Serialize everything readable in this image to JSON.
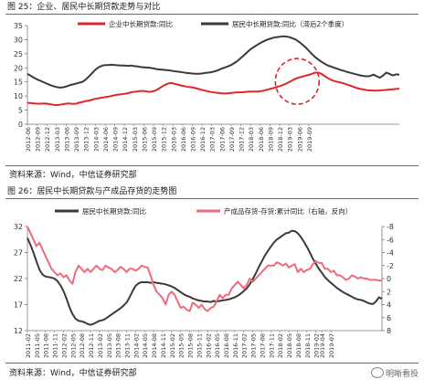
{
  "figure1": {
    "caption": "图 25：企业、居民中长期贷款走势与对比",
    "source": "资料来源：Wind，中信证券研究部"
  },
  "figure2": {
    "caption": "图 26：居民中长期贷款与产成品存货的走势图",
    "source": "资料来源：Wind，中信证券研究部"
  },
  "watermark": {
    "text": "明晰看投"
  },
  "colors": {
    "red": "#e0262d",
    "dark": "#3a3a3a",
    "pink": "#ee6b7c",
    "grid": "#bdbdbd",
    "axis": "#7a7a7a"
  },
  "chart_data": [
    {
      "type": "line",
      "title": "",
      "legend_position": "top",
      "grid": false,
      "ylim": [
        0,
        35
      ],
      "yticks": [
        0,
        5,
        10,
        15,
        20,
        25,
        30,
        35
      ],
      "xticks": [
        "2012-06",
        "2012-09",
        "2012-12",
        "2013-03",
        "2013-06",
        "2013-09",
        "2013-12",
        "2014-03",
        "2014-06",
        "2014-09",
        "2014-12",
        "2015-03",
        "2015-06",
        "2015-09",
        "2015-12",
        "2016-03",
        "2016-06",
        "2016-09",
        "2016-12",
        "2017-03",
        "2017-06",
        "2017-09",
        "2017-12",
        "2018-03",
        "2018-06",
        "2018-09",
        "2018-12",
        "2019-03",
        "2019-06",
        "2019-09"
      ],
      "x_start": "2012-06",
      "annotation": "red dashed ellipse highlighting 2019-03 to 2019-09",
      "series": [
        {
          "name": "企业中长期贷款:同比",
          "color": "#e0262d",
          "values": [
            7.6,
            7.5,
            7.4,
            7.3,
            7.3,
            7.4,
            7.3,
            7.1,
            6.9,
            6.8,
            6.9,
            7.1,
            7.3,
            7.4,
            7.2,
            7.3,
            7.6,
            7.9,
            8.2,
            8.4,
            8.7,
            9.0,
            9.2,
            9.4,
            9.6,
            9.8,
            10.0,
            10.3,
            10.5,
            10.6,
            10.8,
            11.0,
            11.3,
            11.5,
            11.6,
            11.8,
            11.8,
            11.6,
            11.5,
            11.7,
            12.2,
            12.9,
            13.6,
            14.2,
            14.6,
            14.5,
            14.2,
            13.9,
            13.6,
            13.4,
            13.2,
            13.1,
            12.8,
            12.5,
            12.2,
            11.9,
            11.6,
            11.4,
            11.2,
            11.1,
            11.0,
            10.9,
            11.0,
            11.1,
            11.2,
            11.3,
            11.3,
            11.4,
            11.5,
            11.6,
            11.6,
            11.6,
            11.7,
            11.9,
            12.2,
            12.5,
            12.8,
            13.2,
            13.5,
            13.9,
            14.4,
            15.0,
            15.6,
            16.2,
            16.6,
            16.9,
            17.2,
            17.5,
            17.9,
            18.3,
            18.3,
            17.8,
            17.0,
            16.3,
            15.7,
            15.3,
            15.0,
            14.7,
            14.4,
            14.0,
            13.6,
            13.2,
            12.8,
            12.5,
            12.3,
            12.1,
            12.0,
            11.9,
            11.9,
            12.0,
            12.1,
            12.2,
            12.3,
            12.4,
            12.5,
            12.6
          ]
        },
        {
          "name": "居民中长期贷款:同比（滞后2个季度）",
          "color": "#3a3a3a",
          "values": [
            17.9,
            17.2,
            16.5,
            15.9,
            15.4,
            14.9,
            14.4,
            13.9,
            13.5,
            13.2,
            13.0,
            13.1,
            13.4,
            13.8,
            14.1,
            14.4,
            14.7,
            15.0,
            15.8,
            16.9,
            18.1,
            19.3,
            20.2,
            20.7,
            21.0,
            21.0,
            21.1,
            21.0,
            20.9,
            20.8,
            20.8,
            20.7,
            20.8,
            20.6,
            20.5,
            20.3,
            20.2,
            20.1,
            20.0,
            19.8,
            19.5,
            19.4,
            19.3,
            19.2,
            19.1,
            18.9,
            18.7,
            18.6,
            18.4,
            18.2,
            18.1,
            18.0,
            17.9,
            17.9,
            18.0,
            18.2,
            18.3,
            18.5,
            18.8,
            19.2,
            19.7,
            20.1,
            20.5,
            21.0,
            21.7,
            22.5,
            23.5,
            24.5,
            25.6,
            26.6,
            27.4,
            28.1,
            28.8,
            29.4,
            29.9,
            30.3,
            30.7,
            30.9,
            31.0,
            31.2,
            31.1,
            30.9,
            30.5,
            30.0,
            29.2,
            28.3,
            27.3,
            26.1,
            24.9,
            23.8,
            22.9,
            22.1,
            21.4,
            20.8,
            20.4,
            20.0,
            19.6,
            19.2,
            18.9,
            18.5,
            18.2,
            17.9,
            17.6,
            17.3,
            17.1,
            17.0,
            17.1,
            17.6,
            17.0,
            16.5,
            17.3,
            18.3,
            17.8,
            17.3,
            17.7,
            17.6
          ]
        }
      ]
    },
    {
      "type": "line",
      "title": "",
      "legend_position": "top",
      "grid": false,
      "ylim": [
        12,
        32
      ],
      "yticks": [
        12,
        17,
        22,
        27,
        32
      ],
      "y2lim": [
        8,
        -8
      ],
      "y2ticks": [
        8,
        6,
        4,
        2,
        0,
        -2,
        -4,
        -6,
        -8
      ],
      "y2_reversed": true,
      "xticks": [
        "2011-02",
        "2011-05",
        "2011-08",
        "2011-11",
        "2012-02",
        "2012-05",
        "2012-08",
        "2012-11",
        "2013-02",
        "2013-05",
        "2013-08",
        "2013-11",
        "2014-02",
        "2014-05",
        "2014-08",
        "2014-11",
        "2015-02",
        "2015-05",
        "2015-08",
        "2015-11",
        "2016-02",
        "2016-05",
        "2016-08",
        "2016-11",
        "2017-02",
        "2017-05",
        "2017-08",
        "2017-11",
        "2018-02",
        "2018-05",
        "2018-08",
        "2018-11",
        "2019-02",
        "2019-04",
        "2019-07"
      ],
      "x_start": "2011-02",
      "series": [
        {
          "name": "居民中长期贷款:同比",
          "axis": "left",
          "color": "#3a3a3a",
          "values": [
            29.8,
            28.5,
            27.0,
            25.3,
            23.7,
            22.8,
            22.4,
            22.3,
            22.2,
            22.0,
            21.5,
            20.7,
            19.6,
            18.2,
            16.5,
            15.2,
            14.3,
            13.9,
            13.8,
            13.6,
            13.3,
            13.1,
            13.3,
            13.6,
            13.9,
            14.0,
            14.3,
            14.7,
            15.1,
            15.5,
            15.9,
            16.3,
            16.8,
            17.4,
            18.4,
            19.6,
            20.6,
            21.1,
            21.3,
            21.3,
            21.3,
            21.2,
            21.3,
            21.2,
            21.1,
            21.0,
            20.9,
            20.7,
            20.5,
            20.2,
            19.8,
            19.4,
            19.0,
            18.7,
            18.5,
            18.2,
            18.0,
            17.8,
            17.7,
            17.6,
            17.6,
            17.5,
            17.7,
            17.6,
            17.7,
            17.8,
            17.9,
            18.0,
            18.2,
            18.4,
            18.7,
            19.1,
            19.6,
            20.1,
            20.9,
            21.9,
            23.0,
            24.2,
            25.3,
            26.4,
            27.3,
            28.1,
            28.9,
            29.5,
            29.9,
            30.3,
            30.7,
            30.8,
            31.2,
            31.1,
            30.7,
            30.0,
            29.1,
            28.1,
            27.0,
            25.8,
            24.8,
            23.9,
            23.1,
            22.3,
            21.7,
            21.2,
            20.7,
            20.2,
            19.8,
            19.4,
            19.1,
            18.8,
            18.5,
            18.2,
            18.0,
            17.9,
            17.7,
            17.4,
            17.2,
            17.1,
            17.6,
            18.4,
            18.1
          ]
        },
        {
          "name": "产成品存货-存货:累计同比（右轴，反向）",
          "axis": "right",
          "color": "#ee6b7c",
          "values": [
            -8.0,
            -7.0,
            -6.0,
            -5.0,
            -5.5,
            -4.5,
            -3.5,
            -2.5,
            -1.5,
            -1.0,
            -0.5,
            -0.8,
            -0.2,
            -0.5,
            0.3,
            0.8,
            -1.0,
            -2.0,
            -1.5,
            -1.0,
            -1.5,
            -1.0,
            -1.5,
            -2.0,
            -1.5,
            -1.3,
            -2.0,
            -1.7,
            -1.5,
            -1.0,
            -1.3,
            -1.8,
            -1.5,
            -1.0,
            -1.5,
            -1.5,
            -1.2,
            -1.5,
            -2.0,
            -1.8,
            -1.7,
            -0.5,
            1.0,
            2.0,
            2.5,
            3.0,
            4.0,
            2.5,
            2.0,
            2.5,
            3.5,
            4.5,
            4.3,
            4.8,
            5.0,
            3.7,
            4.0,
            4.5,
            4.0,
            4.7,
            5.0,
            4.5,
            4.3,
            3.5,
            2.5,
            3.0,
            2.5,
            2.5,
            1.5,
            1.0,
            0.5,
            1.0,
            1.5,
            1.0,
            0.0,
            0.5,
            0.0,
            -0.5,
            -1.0,
            -1.5,
            -2.0,
            -2.0,
            -2.0,
            -2.5,
            -2.3,
            -2.0,
            -2.3,
            -1.7,
            -2.0,
            -2.2,
            -1.0,
            -1.5,
            -1.0,
            -1.3,
            -1.5,
            -2.2,
            -2.7,
            -2.4,
            -2.4,
            -1.5,
            -1.5,
            -1.0,
            -1.2,
            -0.5,
            -0.5,
            -0.2,
            0.2,
            0.0,
            -0.5,
            -0.3,
            0.0,
            -0.2,
            0.0,
            0.0,
            0.2,
            0.2,
            0.2,
            0.3,
            0.3
          ]
        }
      ]
    }
  ]
}
